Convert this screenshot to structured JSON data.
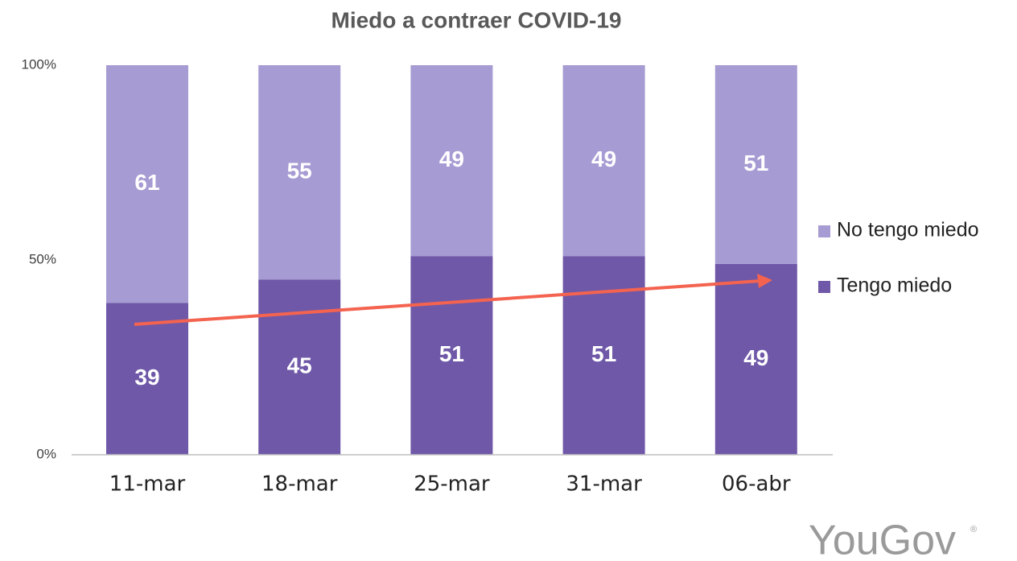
{
  "chart_data": {
    "type": "stacked_bar",
    "title": "Miedo a contraer COVID-19",
    "categories": [
      "11-mar",
      "18-mar",
      "25-mar",
      "31-mar",
      "06-abr"
    ],
    "series": [
      {
        "name": "Tengo miedo",
        "color": "#6f58a8",
        "values": [
          39,
          45,
          51,
          51,
          49
        ]
      },
      {
        "name": "No tengo miedo",
        "color": "#a69bd3",
        "values": [
          61,
          55,
          49,
          49,
          51
        ]
      }
    ],
    "ylim": [
      0,
      100
    ],
    "yticks": [
      {
        "value": 0,
        "label": "0%"
      },
      {
        "value": 50,
        "label": "50%"
      },
      {
        "value": 100,
        "label": "100%"
      }
    ],
    "legend": "right"
  },
  "logo": {
    "text": "YouGov",
    "mark": "®"
  }
}
